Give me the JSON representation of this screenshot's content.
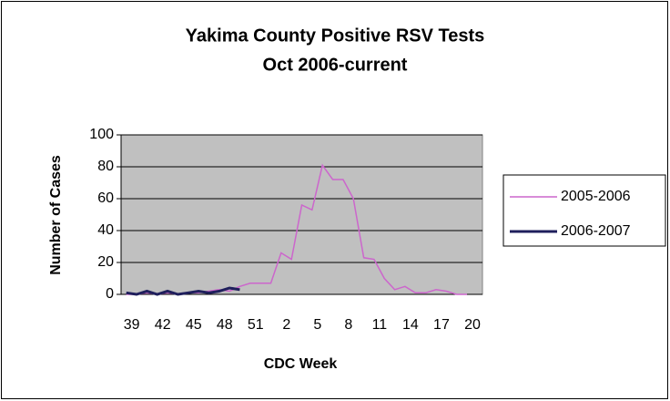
{
  "chart_data": {
    "type": "line",
    "title": [
      "Yakima County Positive RSV Tests",
      "Oct 2006-current"
    ],
    "x_label": "CDC Week",
    "y_label": "Number of Cases",
    "categories": [
      "39",
      null,
      null,
      "42",
      null,
      null,
      "45",
      null,
      null,
      "48",
      null,
      null,
      "51",
      null,
      null,
      "2",
      null,
      null,
      "5",
      null,
      null,
      "8",
      null,
      null,
      "11",
      null,
      null,
      "14",
      null,
      null,
      "17",
      null,
      null,
      "20",
      null
    ],
    "series": [
      {
        "name": "2005-2006",
        "color": "#cc66cc",
        "width": 1.5,
        "values": [
          0,
          0,
          1,
          0,
          1,
          0,
          1,
          1,
          2,
          3,
          2,
          5,
          7,
          7,
          7,
          26,
          22,
          56,
          53,
          81,
          72,
          72,
          60,
          23,
          22,
          10,
          3,
          5,
          1,
          1,
          3,
          2,
          0,
          0,
          null
        ]
      },
      {
        "name": "2006-2007",
        "color": "#1f1f5c",
        "width": 3,
        "values": [
          1,
          0,
          2,
          0,
          2,
          0,
          1,
          2,
          1,
          2,
          4,
          3,
          null,
          null,
          null,
          null,
          null,
          null,
          null,
          null,
          null,
          null,
          null,
          null,
          null,
          null,
          null,
          null,
          null,
          null,
          null,
          null,
          null,
          null,
          null
        ]
      }
    ],
    "ylim": [
      0,
      100
    ],
    "yticks": [
      0,
      20,
      40,
      60,
      80,
      100
    ],
    "grid": true,
    "legend": "right",
    "plot_background": "#c0c0c0"
  }
}
